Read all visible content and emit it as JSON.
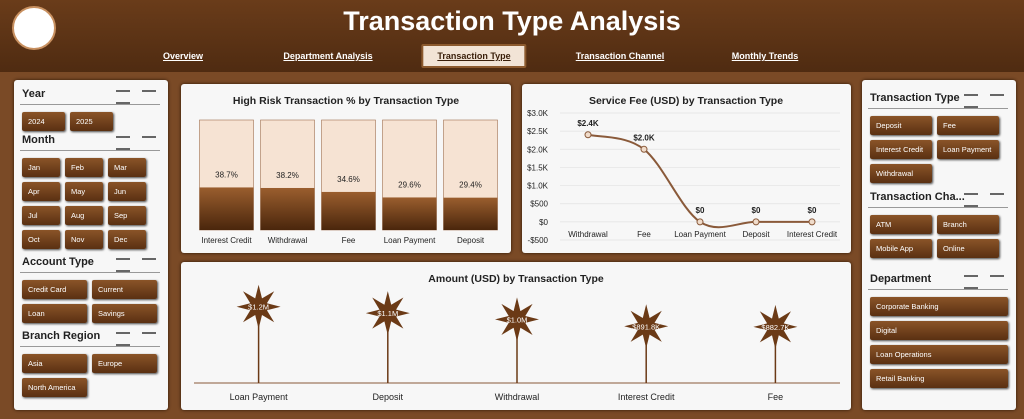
{
  "header": {
    "title": "Transaction Type Analysis"
  },
  "nav": {
    "tabs": [
      "Overview",
      "Department Analysis",
      "Transaction Type",
      "Transaction Channel",
      "Monthly Trends"
    ],
    "active": "Transaction Type"
  },
  "slicers_left": [
    {
      "title": "Year",
      "items": [
        "2024",
        "2025"
      ]
    },
    {
      "title": "Month",
      "items": [
        "Jan",
        "Feb",
        "Mar",
        "Apr",
        "May",
        "Jun",
        "Jul",
        "Aug",
        "Sep",
        "Oct",
        "Nov",
        "Dec"
      ]
    },
    {
      "title": "Account Type",
      "items": [
        "Credit Card",
        "Current",
        "Loan",
        "Savings"
      ]
    },
    {
      "title": "Branch Region",
      "items": [
        "Asia",
        "Europe",
        "North America"
      ]
    }
  ],
  "slicers_right": [
    {
      "title": "Transaction Type",
      "items": [
        "Deposit",
        "Fee",
        "Interest Credit",
        "Loan Payment",
        "Withdrawal"
      ]
    },
    {
      "title": "Transaction Cha...",
      "items": [
        "ATM",
        "Branch",
        "Mobile App",
        "Online"
      ]
    },
    {
      "title": "Department",
      "items": [
        "Corporate Banking",
        "Digital",
        "Loan Operations",
        "Retail Banking"
      ]
    }
  ],
  "chart_data": [
    {
      "type": "bar",
      "title": "High Risk Transaction % by Transaction Type",
      "categories": [
        "Interest Credit",
        "Withdrawal",
        "Fee",
        "Loan Payment",
        "Deposit"
      ],
      "values": [
        38.7,
        38.2,
        34.6,
        29.6,
        29.4
      ],
      "value_labels": [
        "38.7%",
        "38.2%",
        "34.6%",
        "29.6%",
        "29.4%"
      ],
      "ylim": [
        0,
        100
      ],
      "color": "#6b3a16"
    },
    {
      "type": "line",
      "title": "Service Fee (USD) by Transaction Type",
      "categories": [
        "Withdrawal",
        "Fee",
        "Loan Payment",
        "Deposit",
        "Interest Credit"
      ],
      "values": [
        2400,
        2000,
        0,
        0,
        0
      ],
      "value_labels": [
        "$2.4K",
        "$2.0K",
        "$0",
        "$0",
        "$0"
      ],
      "ylim": [
        -500,
        3000
      ],
      "yticks": [
        {
          "value": -500,
          "label": "-$500"
        },
        {
          "value": 0,
          "label": "$0"
        },
        {
          "value": 500,
          "label": "$500"
        },
        {
          "value": 1000,
          "label": "$1.0K"
        },
        {
          "value": 1500,
          "label": "$1.5K"
        },
        {
          "value": 2000,
          "label": "$2.0K"
        },
        {
          "value": 2500,
          "label": "$2.5K"
        },
        {
          "value": 3000,
          "label": "$3.0K"
        }
      ],
      "grid": true,
      "color": "#8a5a3a"
    },
    {
      "type": "lollipop",
      "title": "Amount (USD) by Transaction Type",
      "categories": [
        "Loan Payment",
        "Deposit",
        "Withdrawal",
        "Interest Credit",
        "Fee"
      ],
      "values": [
        1200000,
        1100000,
        1000000,
        891800,
        882700
      ],
      "value_labels": [
        "$1.2M",
        "$1.1M",
        "$1.0M",
        "$891.8K",
        "$882.7K"
      ],
      "ylim": [
        0,
        1400000
      ],
      "color": "#6b3a16"
    }
  ]
}
